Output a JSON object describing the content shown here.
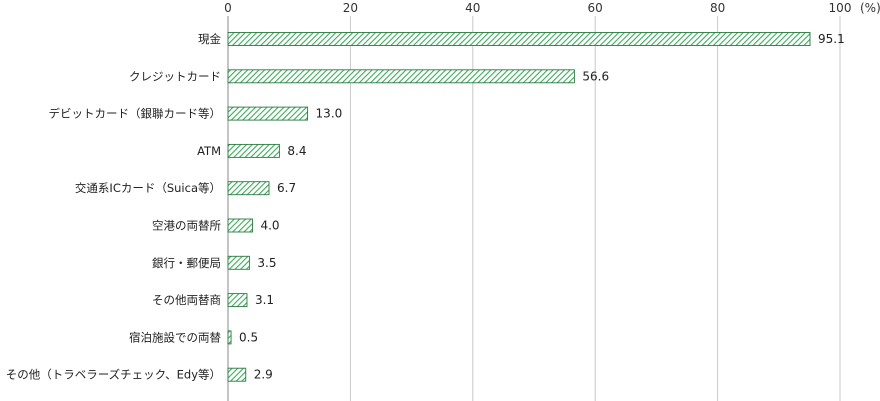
{
  "chart_data": {
    "type": "bar",
    "orientation": "horizontal",
    "categories": [
      "現金",
      "クレジットカード",
      "デビットカード（銀聯カード等）",
      "ATM",
      "交通系ICカード（Suica等）",
      "空港の両替所",
      "銀行・郵便局",
      "その他両替商",
      "宿泊施設での両替",
      "その他（トラベラーズチェック、Edy等）"
    ],
    "values": [
      95.1,
      56.6,
      13.0,
      8.4,
      6.7,
      4.0,
      3.5,
      3.1,
      0.5,
      2.9
    ],
    "value_labels": [
      "95.1",
      "56.6",
      "13.0",
      "8.4",
      "6.7",
      "4.0",
      "3.5",
      "3.1",
      "0.5",
      "2.9"
    ],
    "xlim": [
      0,
      100
    ],
    "xticks": [
      0,
      20,
      40,
      60,
      80,
      100
    ],
    "tick_labels": [
      "0",
      "20",
      "40",
      "60",
      "80",
      "100"
    ],
    "unit_label": "(%)",
    "grid": "vertical",
    "bar_fill": "hatched",
    "colors": {
      "bar_fill": "#ffffff",
      "bar_hatch": "#3daa5c",
      "bar_edge": "#2a7a3f",
      "grid": "#c8c8c8",
      "axis": "#888888"
    }
  }
}
